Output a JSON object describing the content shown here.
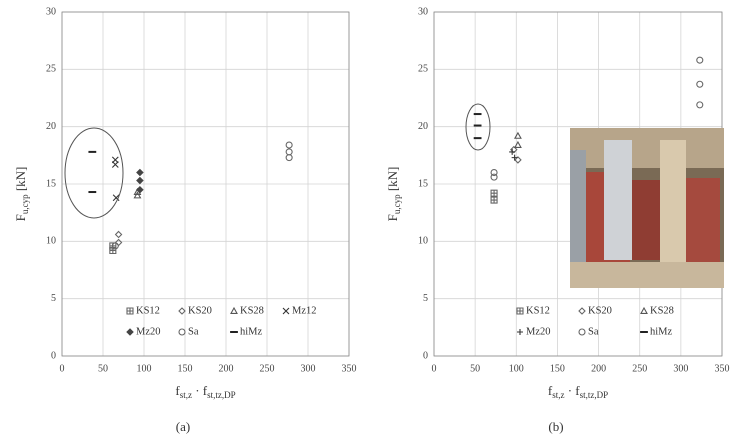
{
  "chart_data": [
    {
      "type": "scatter",
      "caption": "(a)",
      "ylabel": {
        "main": "F",
        "sub": "u,cyp",
        "unit": " [kN]"
      },
      "xlabel": {
        "main": "f",
        "sub": "st,z",
        "mid": " · f",
        "sub2": "st,tz,DP"
      },
      "xlim": [
        0,
        350
      ],
      "xticks": [
        0,
        50,
        100,
        150,
        200,
        250,
        300,
        350
      ],
      "ylim": [
        0,
        30
      ],
      "yticks": [
        0,
        5,
        10,
        15,
        20,
        25,
        30
      ],
      "grid": true,
      "series": [
        {
          "name": "KS12",
          "marker": "square",
          "color": "#666",
          "x": [
            62,
            62
          ],
          "y": [
            9.6,
            9.2
          ]
        },
        {
          "name": "KS20",
          "marker": "diamond",
          "color": "#666",
          "x": [
            69,
            69
          ],
          "y": [
            10.6,
            9.9
          ]
        },
        {
          "name": "KS28",
          "marker": "triangle",
          "color": "#555",
          "x": [
            92,
            92
          ],
          "y": [
            14.3,
            14.0
          ]
        },
        {
          "name": "Mz12",
          "marker": "x",
          "color": "#333",
          "x": [
            65,
            65,
            66
          ],
          "y": [
            17.1,
            16.7,
            13.8
          ]
        },
        {
          "name": "Mz20",
          "marker": "filled-diamond",
          "color": "#444",
          "x": [
            95,
            95,
            95
          ],
          "y": [
            16.0,
            15.3,
            14.5
          ]
        },
        {
          "name": "Sa",
          "marker": "circle",
          "color": "#666",
          "x": [
            65,
            277,
            277,
            277
          ],
          "y": [
            9.6,
            18.4,
            17.8,
            17.3
          ]
        },
        {
          "name": "hiMz",
          "marker": "dash",
          "color": "#222",
          "x": [
            37,
            37
          ],
          "y": [
            17.8,
            14.3
          ]
        }
      ]
    },
    {
      "type": "scatter",
      "caption": "(b)",
      "ylabel": {
        "main": "F",
        "sub": "u,cyp",
        "unit": " [kN]"
      },
      "xlabel": {
        "main": "f",
        "sub": "st,z",
        "mid": " · f",
        "sub2": "st,tz,DP"
      },
      "xlim": [
        0,
        350
      ],
      "xticks": [
        0,
        50,
        100,
        150,
        200,
        250,
        300,
        350
      ],
      "ylim": [
        0,
        30
      ],
      "yticks": [
        0,
        5,
        10,
        15,
        20,
        25,
        30
      ],
      "grid": true,
      "series": [
        {
          "name": "KS12",
          "marker": "square",
          "color": "#666",
          "x": [
            73,
            73
          ],
          "y": [
            14.2,
            13.6
          ]
        },
        {
          "name": "KS20",
          "marker": "diamond",
          "color": "#666",
          "x": [
            97,
            102
          ],
          "y": [
            18.0,
            17.1
          ]
        },
        {
          "name": "KS28",
          "marker": "triangle",
          "color": "#555",
          "x": [
            102,
            102
          ],
          "y": [
            19.2,
            18.4
          ]
        },
        {
          "name": "Mz20",
          "marker": "plus",
          "color": "#333",
          "x": [
            95,
            98
          ],
          "y": [
            17.8,
            17.3
          ]
        },
        {
          "name": "Sa",
          "marker": "circle",
          "color": "#666",
          "x": [
            73,
            73,
            323,
            323,
            323
          ],
          "y": [
            16.0,
            15.6,
            25.8,
            23.7,
            21.9
          ]
        },
        {
          "name": "hiMz",
          "marker": "dash",
          "color": "#222",
          "x": [
            53,
            53,
            53
          ],
          "y": [
            21.1,
            20.1,
            19.0
          ]
        }
      ]
    }
  ]
}
